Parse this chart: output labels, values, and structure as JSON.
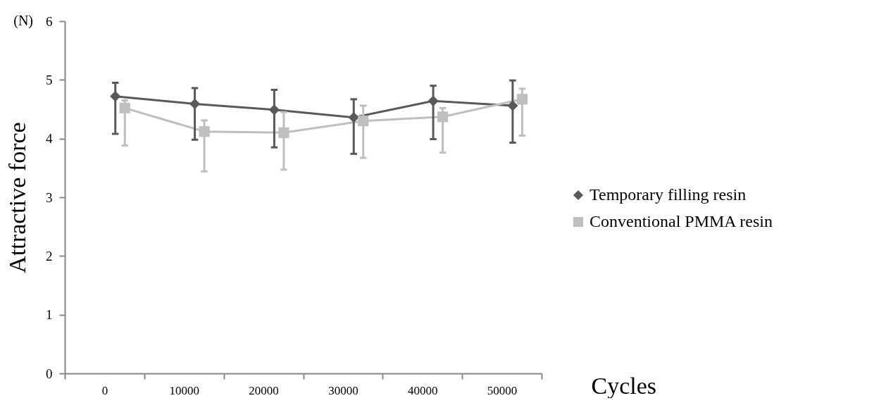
{
  "chart_data": {
    "type": "line",
    "xlabel": "Cycles",
    "ylabel": "Attractive force",
    "annotations": [
      "(N)"
    ],
    "categories": [
      "0",
      "10000",
      "20000",
      "30000",
      "40000",
      "50000"
    ],
    "ylim": [
      0,
      6
    ],
    "yticks": [
      0,
      1,
      2,
      3,
      4,
      5,
      6
    ],
    "grid": false,
    "legend": "right",
    "line_style": "solid",
    "series": [
      {
        "name": "Temporary filling resin",
        "color": "#595959",
        "marker": "diamond",
        "values": [
          4.72,
          4.59,
          4.49,
          4.36,
          4.64,
          4.56
        ],
        "errors": [
          [
            4.08,
            4.95
          ],
          [
            3.98,
            4.86
          ],
          [
            3.85,
            4.83
          ],
          [
            3.74,
            4.67
          ],
          [
            3.99,
            4.9
          ],
          [
            3.93,
            4.99
          ]
        ]
      },
      {
        "name": "Conventional PMMA resin",
        "color": "#bfbfbf",
        "marker": "square",
        "values": [
          4.52,
          4.12,
          4.1,
          4.3,
          4.37,
          4.67
        ],
        "errors": [
          [
            3.88,
            4.65
          ],
          [
            3.44,
            4.31
          ],
          [
            3.47,
            4.45
          ],
          [
            3.67,
            4.56
          ],
          [
            3.76,
            4.52
          ],
          [
            4.05,
            4.85
          ]
        ]
      }
    ]
  }
}
